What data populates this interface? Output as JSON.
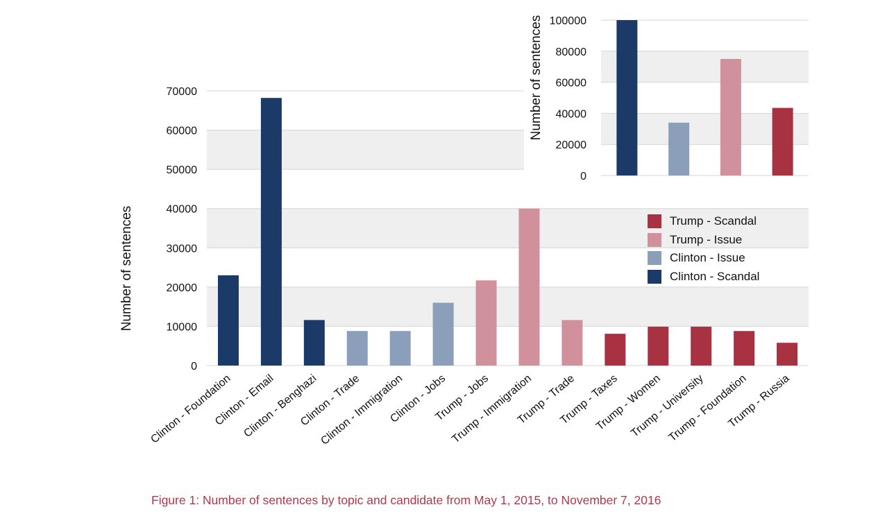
{
  "caption": "Figure 1: Number of sentences by topic and candidate from May 1, 2015, to November 7, 2016",
  "colors": {
    "clinton_scandal": "#1b3a68",
    "clinton_issue": "#8b9fba",
    "trump_issue": "#d0919c",
    "trump_scandal": "#a83242",
    "band": "#efefef",
    "grid": "#d4d4d4"
  },
  "legend": [
    {
      "label": "Trump - Scandal",
      "group": "trump_scandal"
    },
    {
      "label": "Trump - Issue",
      "group": "trump_issue"
    },
    {
      "label": "Clinton - Issue",
      "group": "clinton_issue"
    },
    {
      "label": "Clinton - Scandal",
      "group": "clinton_scandal"
    }
  ],
  "chart_data": [
    {
      "type": "bar",
      "title": "",
      "xlabel": "",
      "ylabel": "Number of sentences",
      "ylim": [
        0,
        70000
      ],
      "yticks": [
        "0",
        "10000",
        "20000",
        "30000",
        "40000",
        "50000",
        "60000",
        "70000"
      ],
      "categories": [
        "Clinton - Foundation",
        "Clinton - Email",
        "Clinton - Benghazi",
        "Clinton - Trade",
        "Clinton - Immigration",
        "Clinton - Jobs",
        "Trump - Jobs",
        "Trump - Immigration",
        "Trump - Trade",
        "Trump - Taxes",
        "Trump - Women",
        "Trump - University",
        "Trump - Foundation",
        "Trump - Russia"
      ],
      "values": [
        23000,
        68200,
        11600,
        8800,
        8800,
        16000,
        21700,
        40000,
        11600,
        8100,
        9900,
        9900,
        8800,
        5800
      ],
      "groups": [
        "clinton_scandal",
        "clinton_scandal",
        "clinton_scandal",
        "clinton_issue",
        "clinton_issue",
        "clinton_issue",
        "trump_issue",
        "trump_issue",
        "trump_issue",
        "trump_scandal",
        "trump_scandal",
        "trump_scandal",
        "trump_scandal",
        "trump_scandal"
      ],
      "grid": true,
      "legend": "inside right"
    },
    {
      "type": "bar",
      "title": "",
      "xlabel": "",
      "ylabel": "Number of sentences",
      "ylim": [
        0,
        100000
      ],
      "yticks": [
        "0",
        "20000",
        "40000",
        "60000",
        "80000",
        "100000"
      ],
      "categories": [
        "Clinton - Scandal",
        "Clinton - Issue",
        "Trump - Issue",
        "Trump - Scandal"
      ],
      "values": [
        100000,
        34000,
        75000,
        43500
      ],
      "groups": [
        "clinton_scandal",
        "clinton_issue",
        "trump_issue",
        "trump_scandal"
      ],
      "grid": true,
      "tick_labels_shown": false
    }
  ]
}
